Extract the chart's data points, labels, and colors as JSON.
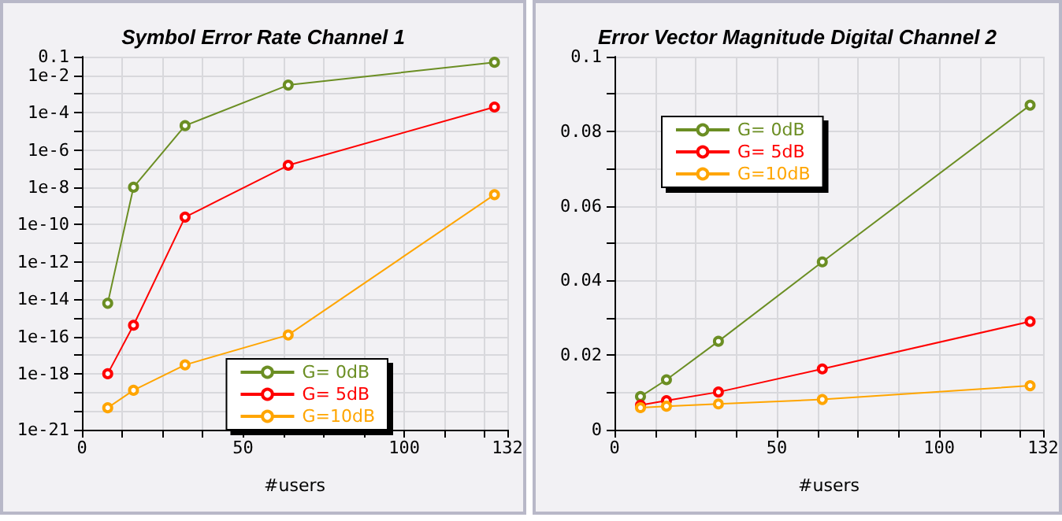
{
  "chart_data": [
    {
      "type": "line",
      "title": "Symbol Error Rate Channel 1",
      "xlabel": "#users",
      "log": "y",
      "grid": true,
      "legend": "bottom right",
      "marker": "circle",
      "xlim": [
        0,
        132
      ],
      "xticks": [
        0,
        {
          "value": 12.5,
          "label": null
        },
        {
          "value": 25,
          "label": null
        },
        {
          "value": 37.5,
          "label": null
        },
        50,
        {
          "value": 62.5,
          "label": null
        },
        {
          "value": 75,
          "label": null
        },
        {
          "value": 87.5,
          "label": null
        },
        100,
        {
          "value": 112.5,
          "label": null
        },
        {
          "value": 125,
          "label": null
        },
        132
      ],
      "ylim": [
        1e-21,
        0.1
      ],
      "yticks": [
        {
          "value": 1e-21,
          "label": "1e-21"
        },
        {
          "value": 1e-20,
          "label": null
        },
        {
          "value": 1e-19,
          "label": null
        },
        {
          "value": 1e-18,
          "label": "1e-18"
        },
        {
          "value": 1e-17,
          "label": null
        },
        {
          "value": 1e-16,
          "label": "1e-16"
        },
        {
          "value": 1e-15,
          "label": null
        },
        {
          "value": 1e-14,
          "label": "1e-14"
        },
        {
          "value": 1e-13,
          "label": null
        },
        {
          "value": 1e-12,
          "label": "1e-12"
        },
        {
          "value": 1e-11,
          "label": null
        },
        {
          "value": 1e-10,
          "label": "1e-10"
        },
        {
          "value": 1e-09,
          "label": null
        },
        {
          "value": 1e-08,
          "label": "1e-8"
        },
        {
          "value": 1e-07,
          "label": null
        },
        {
          "value": 1e-06,
          "label": "1e-6"
        },
        {
          "value": 1e-05,
          "label": null
        },
        {
          "value": 0.0001,
          "label": "1e-4"
        },
        {
          "value": 0.001,
          "label": null
        },
        {
          "value": 0.01,
          "label": "1e-2"
        },
        0.1
      ],
      "x": [
        8,
        16,
        32,
        64,
        128
      ],
      "series": [
        {
          "name": "G= 0dB",
          "color": "#6b8e23",
          "values": [
            6e-15,
            1e-08,
            2e-05,
            0.003,
            0.05
          ]
        },
        {
          "name": "G= 5dB",
          "color": "#ff0000",
          "values": [
            1e-18,
            4e-16,
            2.5e-10,
            1.5e-07,
            0.0002
          ]
        },
        {
          "name": "G=10dB",
          "color": "#ffa500",
          "values": [
            1.5e-20,
            1.3e-19,
            3e-18,
            1.2e-16,
            4e-09
          ]
        }
      ]
    },
    {
      "type": "line",
      "title": "Error Vector Magnitude Digital Channel 2",
      "xlabel": "#users",
      "grid": true,
      "legend": "top left",
      "marker": "circle",
      "xlim": [
        0,
        132
      ],
      "xticks": [
        0,
        {
          "value": 12.5,
          "label": null
        },
        {
          "value": 25,
          "label": null
        },
        {
          "value": 37.5,
          "label": null
        },
        50,
        {
          "value": 62.5,
          "label": null
        },
        {
          "value": 75,
          "label": null
        },
        {
          "value": 87.5,
          "label": null
        },
        100,
        {
          "value": 112.5,
          "label": null
        },
        {
          "value": 125,
          "label": null
        },
        132
      ],
      "ylim": [
        0,
        0.1
      ],
      "yticks": [
        0,
        {
          "value": 0.01,
          "label": null
        },
        0.02,
        {
          "value": 0.03,
          "label": null
        },
        0.04,
        {
          "value": 0.05,
          "label": null
        },
        0.06,
        {
          "value": 0.07,
          "label": null
        },
        0.08,
        {
          "value": 0.09,
          "label": null
        },
        0.1
      ],
      "x": [
        8,
        16,
        32,
        64,
        128
      ],
      "series": [
        {
          "name": "G= 0dB",
          "color": "#6b8e23",
          "values": [
            0.0089,
            0.0134,
            0.0237,
            0.045,
            0.087
          ]
        },
        {
          "name": "G= 5dB",
          "color": "#ff0000",
          "values": [
            0.0066,
            0.0078,
            0.0101,
            0.0163,
            0.029
          ]
        },
        {
          "name": "G=10dB",
          "color": "#ffa500",
          "values": [
            0.0059,
            0.0063,
            0.0069,
            0.0081,
            0.0118
          ]
        }
      ]
    }
  ]
}
